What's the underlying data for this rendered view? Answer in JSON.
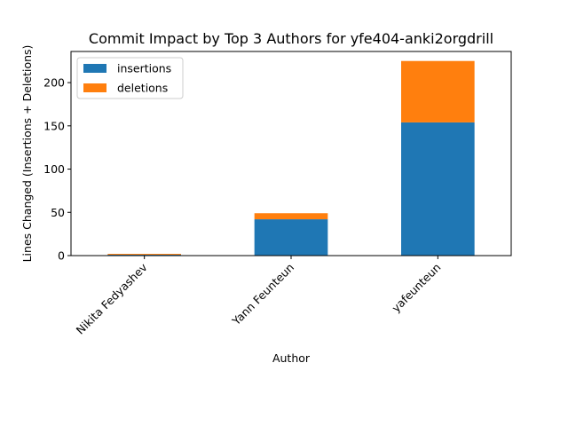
{
  "chart_data": {
    "type": "bar",
    "stacked": true,
    "title": "Commit Impact by Top 3 Authors for yfe404-anki2orgdrill",
    "xlabel": "Author",
    "ylabel": "Lines Changed (Insertions + Deletions)",
    "categories": [
      "Nikita Fedyashev",
      "Yann Feunteun",
      "yafeunteun"
    ],
    "series": [
      {
        "name": "insertions",
        "color": "#1f77b4",
        "values": [
          1,
          42,
          154
        ]
      },
      {
        "name": "deletions",
        "color": "#ff7f0e",
        "values": [
          1,
          7,
          71
        ]
      }
    ],
    "ylim": [
      0,
      236
    ],
    "yticks": [
      0,
      50,
      100,
      150,
      200
    ],
    "grid": false,
    "legend_position": "top-left"
  }
}
